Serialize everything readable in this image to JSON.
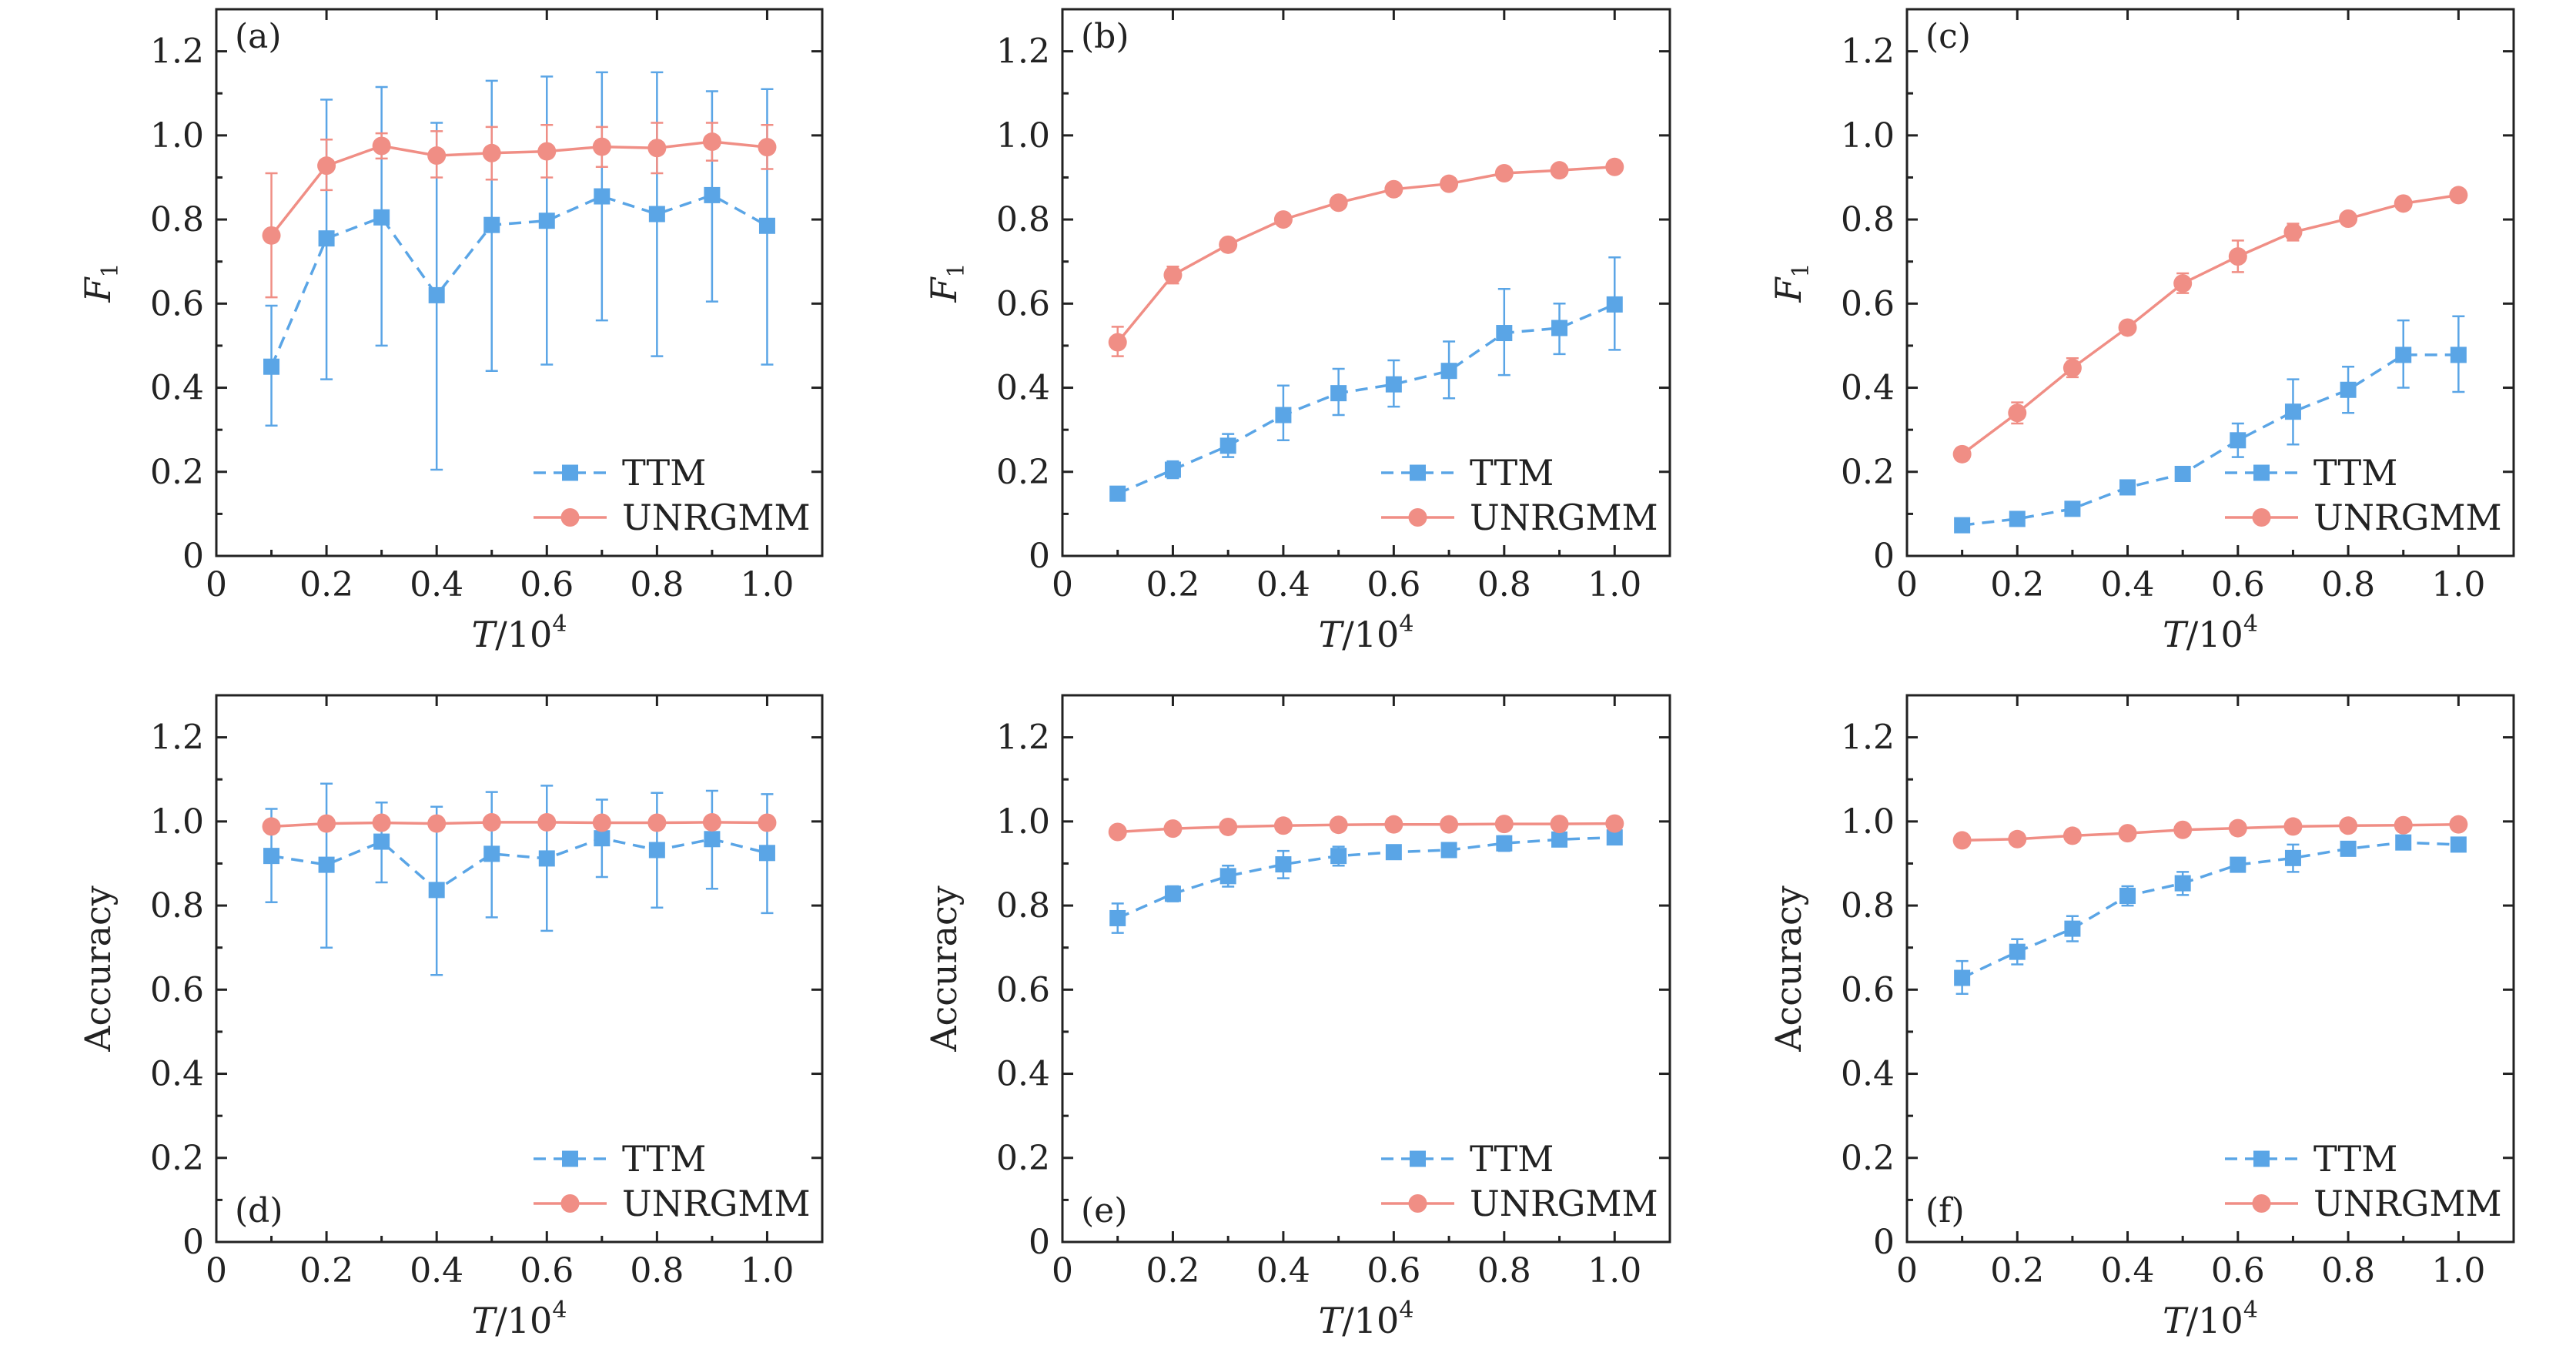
{
  "figure": {
    "series_styles": {
      "TTM": {
        "color": "#5AA5E6",
        "marker": "square",
        "line": "dashed"
      },
      "UNRGMM": {
        "color": "#F08E85",
        "marker": "circle",
        "line": "solid"
      }
    }
  },
  "chart_data": [
    {
      "type": "line",
      "panel_label": "(a)",
      "xlabel_main": "T",
      "xlabel_suffix": "/10",
      "xlabel_sup": "4",
      "ylabel": "F",
      "ylabel_sub": "1",
      "xlim": [
        0,
        1.1
      ],
      "ylim": [
        0,
        1.3
      ],
      "xticks": [
        0,
        0.2,
        0.4,
        0.6,
        0.8,
        1.0
      ],
      "xtick_labels": [
        "0",
        "0.2",
        "0.4",
        "0.6",
        "0.8",
        "1.0"
      ],
      "yticks": [
        0,
        0.2,
        0.4,
        0.6,
        0.8,
        1.0,
        1.2
      ],
      "ytick_labels": [
        "0",
        "0.2",
        "0.4",
        "0.6",
        "0.8",
        "1.0",
        "1.2"
      ],
      "x": [
        0.1,
        0.2,
        0.3,
        0.4,
        0.5,
        0.6,
        0.7,
        0.8,
        0.9,
        1.0
      ],
      "legend_position": "bottom-right",
      "series": [
        {
          "name": "TTM",
          "values": [
            0.45,
            0.755,
            0.805,
            0.62,
            0.787,
            0.797,
            0.855,
            0.813,
            0.858,
            0.785
          ],
          "err_lo": [
            0.31,
            0.42,
            0.5,
            0.205,
            0.44,
            0.455,
            0.56,
            0.475,
            0.605,
            0.455
          ],
          "err_hi": [
            0.595,
            1.085,
            1.115,
            1.03,
            1.13,
            1.14,
            1.15,
            1.15,
            1.105,
            1.11
          ]
        },
        {
          "name": "UNRGMM",
          "values": [
            0.762,
            0.928,
            0.975,
            0.952,
            0.958,
            0.962,
            0.973,
            0.97,
            0.985,
            0.972
          ],
          "err_lo": [
            0.615,
            0.87,
            0.945,
            0.9,
            0.895,
            0.9,
            0.925,
            0.91,
            0.94,
            0.92
          ],
          "err_hi": [
            0.91,
            0.99,
            1.005,
            1.01,
            1.02,
            1.025,
            1.02,
            1.03,
            1.03,
            1.025
          ]
        }
      ]
    },
    {
      "type": "line",
      "panel_label": "(b)",
      "xlabel_main": "T",
      "xlabel_suffix": "/10",
      "xlabel_sup": "4",
      "ylabel": "F",
      "ylabel_sub": "1",
      "xlim": [
        0,
        1.1
      ],
      "ylim": [
        0,
        1.3
      ],
      "xticks": [
        0,
        0.2,
        0.4,
        0.6,
        0.8,
        1.0
      ],
      "xtick_labels": [
        "0",
        "0.2",
        "0.4",
        "0.6",
        "0.8",
        "1.0"
      ],
      "yticks": [
        0,
        0.2,
        0.4,
        0.6,
        0.8,
        1.0,
        1.2
      ],
      "ytick_labels": [
        "0",
        "0.2",
        "0.4",
        "0.6",
        "0.8",
        "1.0",
        "1.2"
      ],
      "x": [
        0.1,
        0.2,
        0.3,
        0.4,
        0.5,
        0.6,
        0.7,
        0.8,
        0.9,
        1.0
      ],
      "legend_position": "bottom-right",
      "series": [
        {
          "name": "TTM",
          "values": [
            0.148,
            0.205,
            0.262,
            0.335,
            0.387,
            0.408,
            0.44,
            0.53,
            0.542,
            0.598
          ],
          "err_lo": [
            0.135,
            0.185,
            0.235,
            0.275,
            0.335,
            0.355,
            0.375,
            0.43,
            0.48,
            0.49
          ],
          "err_hi": [
            0.16,
            0.225,
            0.29,
            0.405,
            0.445,
            0.465,
            0.51,
            0.635,
            0.6,
            0.71
          ]
        },
        {
          "name": "UNRGMM",
          "values": [
            0.508,
            0.668,
            0.74,
            0.8,
            0.84,
            0.872,
            0.885,
            0.91,
            0.917,
            0.925
          ],
          "err_lo": [
            0.475,
            0.648,
            0.728,
            0.792,
            0.832,
            0.864,
            0.877,
            0.902,
            0.909,
            0.917
          ],
          "err_hi": [
            0.545,
            0.688,
            0.752,
            0.808,
            0.848,
            0.88,
            0.893,
            0.918,
            0.925,
            0.933
          ]
        }
      ]
    },
    {
      "type": "line",
      "panel_label": "(c)",
      "xlabel_main": "T",
      "xlabel_suffix": "/10",
      "xlabel_sup": "4",
      "ylabel": "F",
      "ylabel_sub": "1",
      "xlim": [
        0,
        1.1
      ],
      "ylim": [
        0,
        1.3
      ],
      "xticks": [
        0,
        0.2,
        0.4,
        0.6,
        0.8,
        1.0
      ],
      "xtick_labels": [
        "0",
        "0.2",
        "0.4",
        "0.6",
        "0.8",
        "1.0"
      ],
      "yticks": [
        0,
        0.2,
        0.4,
        0.6,
        0.8,
        1.0,
        1.2
      ],
      "ytick_labels": [
        "0",
        "0.2",
        "0.4",
        "0.6",
        "0.8",
        "1.0",
        "1.2"
      ],
      "x": [
        0.1,
        0.2,
        0.3,
        0.4,
        0.5,
        0.6,
        0.7,
        0.8,
        0.9,
        1.0
      ],
      "legend_position": "bottom-right",
      "series": [
        {
          "name": "TTM",
          "values": [
            0.073,
            0.088,
            0.112,
            0.163,
            0.195,
            0.275,
            0.343,
            0.395,
            0.478,
            0.478
          ],
          "err_lo": [
            0.063,
            0.078,
            0.1,
            0.15,
            0.18,
            0.235,
            0.265,
            0.34,
            0.4,
            0.39
          ],
          "err_hi": [
            0.083,
            0.098,
            0.124,
            0.176,
            0.21,
            0.315,
            0.42,
            0.45,
            0.56,
            0.57
          ]
        },
        {
          "name": "UNRGMM",
          "values": [
            0.242,
            0.34,
            0.447,
            0.543,
            0.648,
            0.712,
            0.77,
            0.802,
            0.838,
            0.858
          ],
          "err_lo": [
            0.23,
            0.315,
            0.425,
            0.53,
            0.625,
            0.675,
            0.75,
            0.792,
            0.828,
            0.848
          ],
          "err_hi": [
            0.254,
            0.365,
            0.47,
            0.556,
            0.672,
            0.75,
            0.79,
            0.812,
            0.848,
            0.868
          ]
        }
      ]
    },
    {
      "type": "line",
      "panel_label": "(d)",
      "xlabel_main": "T",
      "xlabel_suffix": "/10",
      "xlabel_sup": "4",
      "ylabel": "Accuracy",
      "ylabel_sub": "",
      "xlim": [
        0,
        1.1
      ],
      "ylim": [
        0,
        1.3
      ],
      "xticks": [
        0,
        0.2,
        0.4,
        0.6,
        0.8,
        1.0
      ],
      "xtick_labels": [
        "0",
        "0.2",
        "0.4",
        "0.6",
        "0.8",
        "1.0"
      ],
      "yticks": [
        0,
        0.2,
        0.4,
        0.6,
        0.8,
        1.0,
        1.2
      ],
      "ytick_labels": [
        "0",
        "0.2",
        "0.4",
        "0.6",
        "0.8",
        "1.0",
        "1.2"
      ],
      "x": [
        0.1,
        0.2,
        0.3,
        0.4,
        0.5,
        0.6,
        0.7,
        0.8,
        0.9,
        1.0
      ],
      "legend_position": "bottom-right",
      "series": [
        {
          "name": "TTM",
          "values": [
            0.918,
            0.897,
            0.952,
            0.837,
            0.923,
            0.912,
            0.96,
            0.932,
            0.958,
            0.925
          ],
          "err_lo": [
            0.808,
            0.7,
            0.855,
            0.635,
            0.772,
            0.74,
            0.868,
            0.795,
            0.84,
            0.782
          ],
          "err_hi": [
            1.03,
            1.09,
            1.045,
            1.035,
            1.07,
            1.085,
            1.052,
            1.068,
            1.073,
            1.065
          ]
        },
        {
          "name": "UNRGMM",
          "values": [
            0.988,
            0.995,
            0.997,
            0.995,
            0.998,
            0.998,
            0.997,
            0.997,
            0.998,
            0.997
          ],
          "err_lo": [
            0.978,
            0.99,
            0.992,
            0.99,
            0.993,
            0.993,
            0.992,
            0.992,
            0.993,
            0.992
          ],
          "err_hi": [
            0.998,
            1.0,
            1.002,
            1.0,
            1.003,
            1.003,
            1.002,
            1.002,
            1.003,
            1.002
          ]
        }
      ]
    },
    {
      "type": "line",
      "panel_label": "(e)",
      "xlabel_main": "T",
      "xlabel_suffix": "/10",
      "xlabel_sup": "4",
      "ylabel": "Accuracy",
      "ylabel_sub": "",
      "xlim": [
        0,
        1.1
      ],
      "ylim": [
        0,
        1.3
      ],
      "xticks": [
        0,
        0.2,
        0.4,
        0.6,
        0.8,
        1.0
      ],
      "xtick_labels": [
        "0",
        "0.2",
        "0.4",
        "0.6",
        "0.8",
        "1.0"
      ],
      "yticks": [
        0,
        0.2,
        0.4,
        0.6,
        0.8,
        1.0,
        1.2
      ],
      "ytick_labels": [
        "0",
        "0.2",
        "0.4",
        "0.6",
        "0.8",
        "1.0",
        "1.2"
      ],
      "x": [
        0.1,
        0.2,
        0.3,
        0.4,
        0.5,
        0.6,
        0.7,
        0.8,
        0.9,
        1.0
      ],
      "legend_position": "bottom-right",
      "series": [
        {
          "name": "TTM",
          "values": [
            0.77,
            0.828,
            0.87,
            0.898,
            0.918,
            0.927,
            0.932,
            0.948,
            0.957,
            0.962
          ],
          "err_lo": [
            0.735,
            0.81,
            0.845,
            0.865,
            0.895,
            0.915,
            0.915,
            0.93,
            0.945,
            0.95
          ],
          "err_hi": [
            0.805,
            0.846,
            0.895,
            0.93,
            0.94,
            0.94,
            0.948,
            0.965,
            0.968,
            0.974
          ]
        },
        {
          "name": "UNRGMM",
          "values": [
            0.975,
            0.983,
            0.987,
            0.99,
            0.992,
            0.993,
            0.993,
            0.994,
            0.994,
            0.995
          ],
          "err_lo": [
            0.968,
            0.978,
            0.982,
            0.985,
            0.987,
            0.988,
            0.988,
            0.989,
            0.989,
            0.99
          ],
          "err_hi": [
            0.982,
            0.988,
            0.992,
            0.995,
            0.997,
            0.998,
            0.998,
            0.999,
            0.999,
            1.0
          ]
        }
      ]
    },
    {
      "type": "line",
      "panel_label": "(f)",
      "xlabel_main": "T",
      "xlabel_suffix": "/10",
      "xlabel_sup": "4",
      "ylabel": "Accuracy",
      "ylabel_sub": "",
      "xlim": [
        0,
        1.1
      ],
      "ylim": [
        0,
        1.3
      ],
      "xticks": [
        0,
        0.2,
        0.4,
        0.6,
        0.8,
        1.0
      ],
      "xtick_labels": [
        "0",
        "0.2",
        "0.4",
        "0.6",
        "0.8",
        "1.0"
      ],
      "yticks": [
        0,
        0.2,
        0.4,
        0.6,
        0.8,
        1.0,
        1.2
      ],
      "ytick_labels": [
        "0",
        "0.2",
        "0.4",
        "0.6",
        "0.8",
        "1.0",
        "1.2"
      ],
      "x": [
        0.1,
        0.2,
        0.3,
        0.4,
        0.5,
        0.6,
        0.7,
        0.8,
        0.9,
        1.0
      ],
      "legend_position": "bottom-right",
      "series": [
        {
          "name": "TTM",
          "values": [
            0.628,
            0.69,
            0.745,
            0.823,
            0.853,
            0.897,
            0.913,
            0.935,
            0.95,
            0.945
          ],
          "err_lo": [
            0.59,
            0.66,
            0.715,
            0.8,
            0.825,
            0.885,
            0.88,
            0.925,
            0.94,
            0.935
          ],
          "err_hi": [
            0.668,
            0.72,
            0.775,
            0.846,
            0.88,
            0.91,
            0.945,
            0.945,
            0.96,
            0.955
          ]
        },
        {
          "name": "UNRGMM",
          "values": [
            0.955,
            0.958,
            0.966,
            0.972,
            0.98,
            0.984,
            0.988,
            0.99,
            0.991,
            0.993
          ],
          "err_lo": [
            0.95,
            0.953,
            0.961,
            0.967,
            0.975,
            0.979,
            0.983,
            0.985,
            0.986,
            0.988
          ],
          "err_hi": [
            0.96,
            0.963,
            0.971,
            0.977,
            0.985,
            0.989,
            0.993,
            0.995,
            0.996,
            0.998
          ]
        }
      ]
    }
  ]
}
